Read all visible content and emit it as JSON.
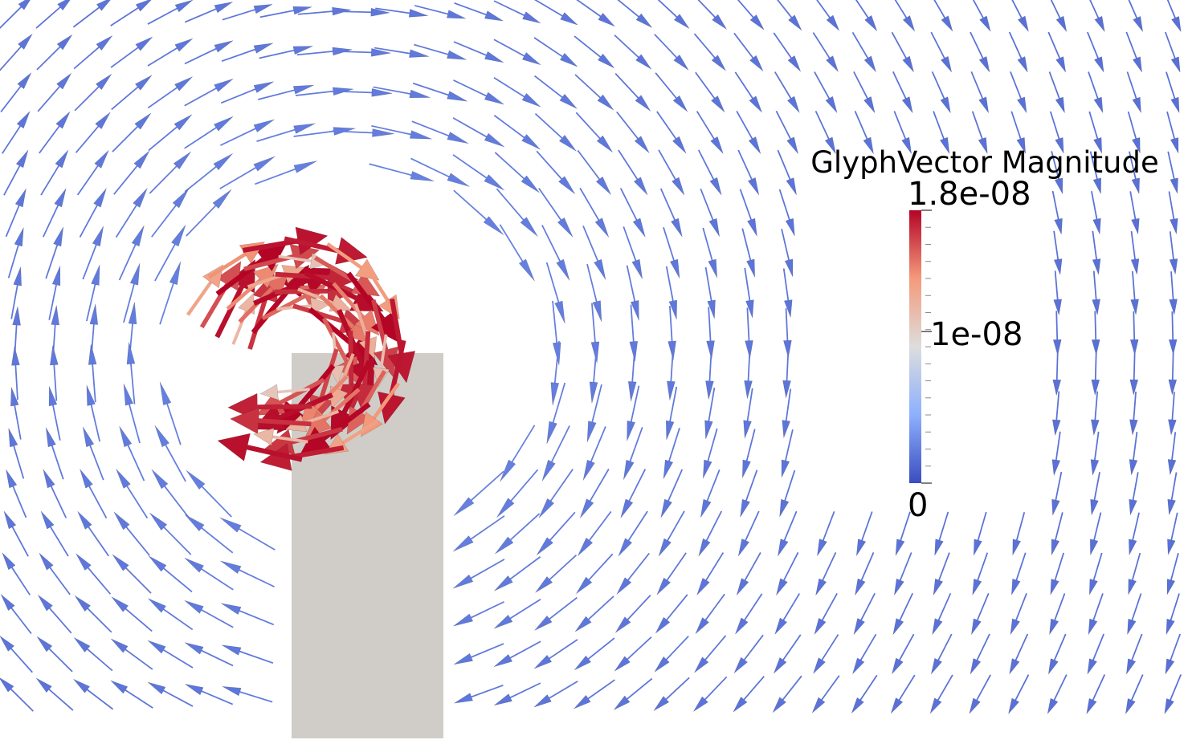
{
  "legend": {
    "title": "GlyphVector Magnitude",
    "ticks": [
      {
        "value": 1.8e-08,
        "label": "1.8e-08"
      },
      {
        "value": 1e-08,
        "label": "1e-08"
      },
      0
    ],
    "range": [
      0,
      1.8e-08
    ]
  }
}
